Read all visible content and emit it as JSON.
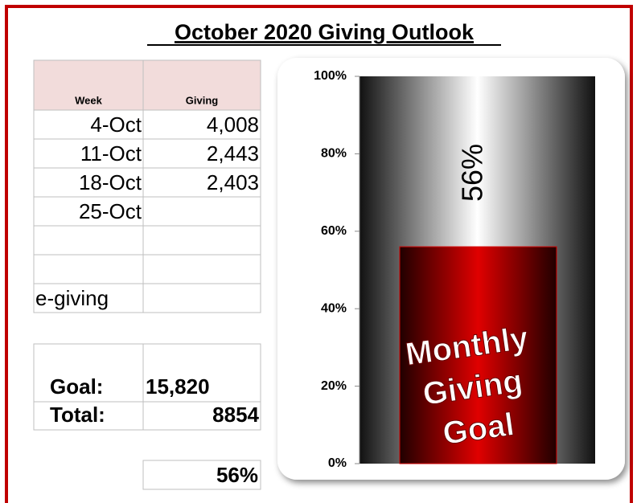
{
  "title": "October 2020 Giving Outlook",
  "table": {
    "headers": [
      "Week",
      "Giving"
    ],
    "rows": [
      [
        "4-Oct",
        "4,008"
      ],
      [
        "11-Oct",
        "2,443"
      ],
      [
        "18-Oct",
        "2,403"
      ],
      [
        "25-Oct",
        null
      ],
      [
        null,
        null
      ],
      [
        null,
        null
      ],
      [
        "e-giving",
        null
      ]
    ]
  },
  "summary": {
    "goal_label": "Goal:",
    "goal": "15,820",
    "total_label": "Total:",
    "total": "8854",
    "percent": "56%"
  },
  "chart_data": {
    "type": "bar",
    "values": [
      56
    ],
    "value_labels": [
      "56%"
    ],
    "color": "#d40000",
    "annotation_lines": [
      "Monthly",
      "Giving",
      "Goal"
    ],
    "ylim": [
      0,
      100
    ],
    "yticks": [
      {
        "value": 0,
        "label": "0%"
      },
      {
        "value": 20,
        "label": "20%"
      },
      {
        "value": 40,
        "label": "40%"
      },
      {
        "value": 60,
        "label": "60%"
      },
      {
        "value": 80,
        "label": "80%"
      },
      {
        "value": 100,
        "label": "100%"
      }
    ]
  }
}
